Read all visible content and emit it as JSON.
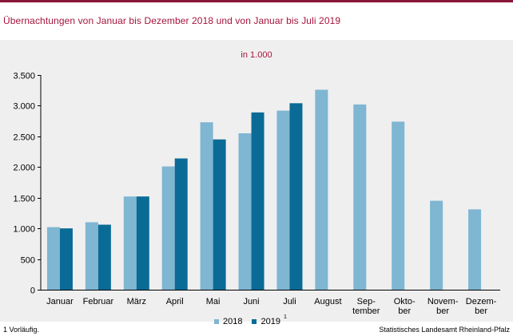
{
  "title": "Übernachtungen  von  Januar  bis  Dezember  2018  und  von  Januar  bis  Juli  2019",
  "unit_label": "in 1.000",
  "footnote": "1 Vorläufig.",
  "source": "Statistisches Landesamt Rheinland-Pfalz",
  "legend": [
    {
      "label": "2018",
      "color": "#7fb6d2"
    },
    {
      "label": "2019",
      "color": "#0a6b96",
      "sup": "1"
    }
  ],
  "chart_data": {
    "type": "bar",
    "categories": [
      [
        "Januar"
      ],
      [
        "Februar"
      ],
      [
        "März"
      ],
      [
        "April"
      ],
      [
        "Mai"
      ],
      [
        "Juni"
      ],
      [
        "Juli"
      ],
      [
        "August"
      ],
      [
        "Sep-",
        "tember"
      ],
      [
        "Okto-",
        "ber"
      ],
      [
        "Novem-",
        "ber"
      ],
      [
        "Dezem-",
        "ber"
      ]
    ],
    "series": [
      {
        "name": "2018",
        "color": "#7fb6d2",
        "values": [
          1020,
          1100,
          1520,
          2010,
          2730,
          2550,
          2920,
          3260,
          3020,
          2740,
          1450,
          1310
        ]
      },
      {
        "name": "2019",
        "color": "#0a6b96",
        "values": [
          1000,
          1060,
          1520,
          2140,
          2450,
          2890,
          3040,
          null,
          null,
          null,
          null,
          null
        ]
      }
    ],
    "yticks": [
      {
        "v": 0,
        "label": "0"
      },
      {
        "v": 500,
        "label": "500"
      },
      {
        "v": 1000,
        "label": "1.000"
      },
      {
        "v": 1500,
        "label": "1.500"
      },
      {
        "v": 2000,
        "label": "2.000"
      },
      {
        "v": 2500,
        "label": "2.500"
      },
      {
        "v": 3000,
        "label": "3.000"
      },
      {
        "v": 3500,
        "label": "3.500"
      }
    ],
    "ylim": [
      0,
      3500
    ],
    "grid": false
  }
}
